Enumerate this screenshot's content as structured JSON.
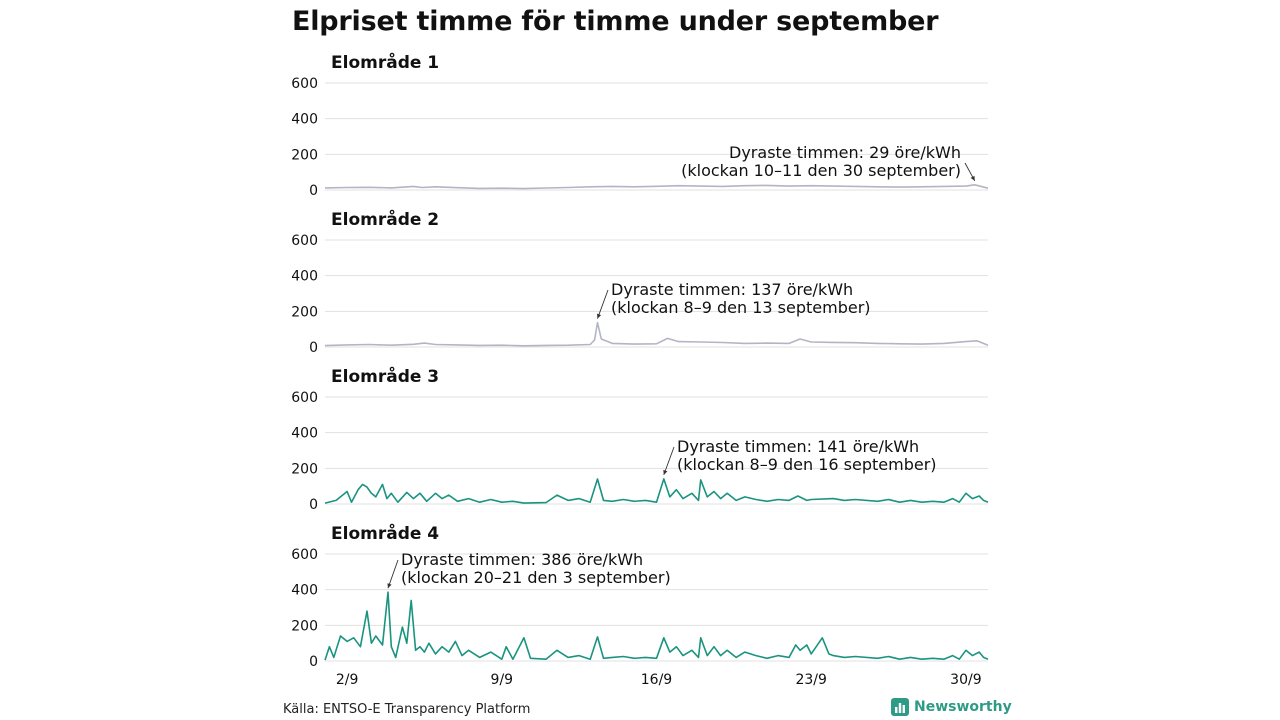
{
  "title": "Elpriset timme för timme under september",
  "source": "Källa: ENTSO-E Transparency Platform",
  "brand": {
    "name": "Newsworthy",
    "icon": "bar-chart-icon",
    "color": "#2e9b86"
  },
  "chart_data": {
    "type": "line",
    "unit": "öre/kWh",
    "x_ticks": [
      {
        "label": "2/9",
        "day": 2
      },
      {
        "label": "9/9",
        "day": 9
      },
      {
        "label": "16/9",
        "day": 16
      },
      {
        "label": "23/9",
        "day": 23
      },
      {
        "label": "30/9",
        "day": 30
      }
    ],
    "y_ticks": [
      0,
      200,
      400,
      600
    ],
    "ylim": [
      0,
      600
    ],
    "xlim_days": [
      1,
      31
    ],
    "grid": true,
    "panels": [
      {
        "name": "Elområde 1",
        "color": "#b3b5c6",
        "annotation": {
          "line1": "Dyraste timmen: 29 öre/kWh",
          "line2": "(klockan 10–11 den 30 september)",
          "day": 30.4,
          "value": 29
        },
        "points": [
          [
            1,
            12
          ],
          [
            2,
            14
          ],
          [
            3,
            15
          ],
          [
            4,
            12
          ],
          [
            5,
            20
          ],
          [
            5.4,
            14
          ],
          [
            6,
            18
          ],
          [
            7,
            13
          ],
          [
            8,
            9
          ],
          [
            9,
            10
          ],
          [
            10,
            8
          ],
          [
            11,
            11
          ],
          [
            12,
            14
          ],
          [
            13,
            18
          ],
          [
            14,
            20
          ],
          [
            15,
            18
          ],
          [
            16,
            21
          ],
          [
            17,
            24
          ],
          [
            18,
            22
          ],
          [
            19,
            20
          ],
          [
            20,
            24
          ],
          [
            21,
            26
          ],
          [
            22,
            22
          ],
          [
            23,
            24
          ],
          [
            24,
            22
          ],
          [
            25,
            20
          ],
          [
            26,
            18
          ],
          [
            27,
            16
          ],
          [
            28,
            18
          ],
          [
            29,
            20
          ],
          [
            30,
            22
          ],
          [
            30.4,
            29
          ],
          [
            31,
            10
          ]
        ]
      },
      {
        "name": "Elområde 2",
        "color": "#b3b5c6",
        "annotation": {
          "line1": "Dyraste timmen: 137 öre/kWh",
          "line2": "(klockan 8–9 den 13 september)",
          "day": 13.33,
          "value": 137
        },
        "points": [
          [
            1,
            8
          ],
          [
            2,
            12
          ],
          [
            3,
            14
          ],
          [
            4,
            10
          ],
          [
            5,
            15
          ],
          [
            5.5,
            22
          ],
          [
            6,
            14
          ],
          [
            7,
            12
          ],
          [
            8,
            9
          ],
          [
            9,
            10
          ],
          [
            10,
            7
          ],
          [
            11,
            9
          ],
          [
            12,
            10
          ],
          [
            13,
            14
          ],
          [
            13.2,
            40
          ],
          [
            13.33,
            137
          ],
          [
            13.5,
            45
          ],
          [
            14,
            20
          ],
          [
            15,
            16
          ],
          [
            16,
            18
          ],
          [
            16.5,
            48
          ],
          [
            17,
            30
          ],
          [
            18,
            28
          ],
          [
            19,
            25
          ],
          [
            20,
            20
          ],
          [
            21,
            22
          ],
          [
            22,
            20
          ],
          [
            22.5,
            45
          ],
          [
            23,
            28
          ],
          [
            24,
            26
          ],
          [
            25,
            24
          ],
          [
            26,
            20
          ],
          [
            27,
            18
          ],
          [
            28,
            16
          ],
          [
            29,
            20
          ],
          [
            30,
            30
          ],
          [
            30.5,
            35
          ],
          [
            31,
            10
          ]
        ]
      },
      {
        "name": "Elområde 3",
        "color": "#1a9480",
        "annotation": {
          "line1": "Dyraste timmen: 141 öre/kWh",
          "line2": "(klockan 8–9 den 16 september)",
          "day": 16.33,
          "value": 141
        },
        "points": [
          [
            1,
            5
          ],
          [
            1.5,
            20
          ],
          [
            2,
            70
          ],
          [
            2.2,
            10
          ],
          [
            2.5,
            80
          ],
          [
            2.7,
            110
          ],
          [
            2.9,
            95
          ],
          [
            3.1,
            60
          ],
          [
            3.3,
            40
          ],
          [
            3.6,
            110
          ],
          [
            3.8,
            30
          ],
          [
            4,
            60
          ],
          [
            4.3,
            10
          ],
          [
            4.7,
            65
          ],
          [
            5,
            30
          ],
          [
            5.3,
            60
          ],
          [
            5.6,
            15
          ],
          [
            6,
            60
          ],
          [
            6.3,
            30
          ],
          [
            6.6,
            50
          ],
          [
            7,
            15
          ],
          [
            7.5,
            30
          ],
          [
            8,
            10
          ],
          [
            8.5,
            25
          ],
          [
            9,
            10
          ],
          [
            9.5,
            15
          ],
          [
            10,
            5
          ],
          [
            11,
            8
          ],
          [
            11.5,
            50
          ],
          [
            12,
            20
          ],
          [
            12.5,
            30
          ],
          [
            13,
            10
          ],
          [
            13.33,
            140
          ],
          [
            13.6,
            20
          ],
          [
            14,
            15
          ],
          [
            14.5,
            25
          ],
          [
            15,
            15
          ],
          [
            15.5,
            20
          ],
          [
            16,
            10
          ],
          [
            16.33,
            141
          ],
          [
            16.6,
            40
          ],
          [
            16.9,
            80
          ],
          [
            17.2,
            30
          ],
          [
            17.6,
            60
          ],
          [
            17.9,
            20
          ],
          [
            18,
            135
          ],
          [
            18.3,
            40
          ],
          [
            18.6,
            70
          ],
          [
            18.9,
            30
          ],
          [
            19.2,
            60
          ],
          [
            19.6,
            20
          ],
          [
            20,
            40
          ],
          [
            20.5,
            25
          ],
          [
            21,
            15
          ],
          [
            21.5,
            25
          ],
          [
            22,
            20
          ],
          [
            22.4,
            45
          ],
          [
            22.8,
            20
          ],
          [
            23,
            25
          ],
          [
            24,
            30
          ],
          [
            24.5,
            20
          ],
          [
            25,
            25
          ],
          [
            26,
            15
          ],
          [
            26.5,
            25
          ],
          [
            27,
            10
          ],
          [
            27.5,
            20
          ],
          [
            28,
            10
          ],
          [
            28.5,
            15
          ],
          [
            29,
            10
          ],
          [
            29.4,
            30
          ],
          [
            29.7,
            10
          ],
          [
            30,
            60
          ],
          [
            30.3,
            30
          ],
          [
            30.6,
            45
          ],
          [
            30.8,
            20
          ],
          [
            31,
            10
          ]
        ]
      },
      {
        "name": "Elområde 4",
        "color": "#1a9480",
        "annotation": {
          "line1": "Dyraste timmen: 386 öre/kWh",
          "line2": "(klockan 20–21 den 3 september)",
          "day": 3.85,
          "value": 386
        },
        "points": [
          [
            1,
            5
          ],
          [
            1.2,
            80
          ],
          [
            1.4,
            20
          ],
          [
            1.7,
            140
          ],
          [
            2,
            110
          ],
          [
            2.3,
            130
          ],
          [
            2.6,
            80
          ],
          [
            2.9,
            280
          ],
          [
            3.1,
            100
          ],
          [
            3.3,
            140
          ],
          [
            3.6,
            90
          ],
          [
            3.85,
            386
          ],
          [
            4,
            80
          ],
          [
            4.2,
            20
          ],
          [
            4.5,
            190
          ],
          [
            4.7,
            100
          ],
          [
            4.9,
            340
          ],
          [
            5.1,
            60
          ],
          [
            5.3,
            80
          ],
          [
            5.5,
            50
          ],
          [
            5.7,
            100
          ],
          [
            6,
            40
          ],
          [
            6.3,
            80
          ],
          [
            6.6,
            50
          ],
          [
            6.9,
            110
          ],
          [
            7.2,
            30
          ],
          [
            7.5,
            60
          ],
          [
            8,
            20
          ],
          [
            8.5,
            50
          ],
          [
            9,
            10
          ],
          [
            9.2,
            80
          ],
          [
            9.5,
            10
          ],
          [
            10,
            130
          ],
          [
            10.3,
            15
          ],
          [
            11,
            10
          ],
          [
            11.5,
            60
          ],
          [
            12,
            20
          ],
          [
            12.5,
            30
          ],
          [
            13,
            10
          ],
          [
            13.33,
            135
          ],
          [
            13.6,
            15
          ],
          [
            14,
            20
          ],
          [
            14.5,
            25
          ],
          [
            15,
            15
          ],
          [
            15.5,
            20
          ],
          [
            16,
            15
          ],
          [
            16.33,
            130
          ],
          [
            16.6,
            50
          ],
          [
            16.9,
            80
          ],
          [
            17.2,
            30
          ],
          [
            17.6,
            60
          ],
          [
            17.9,
            20
          ],
          [
            18,
            130
          ],
          [
            18.3,
            30
          ],
          [
            18.6,
            80
          ],
          [
            18.9,
            30
          ],
          [
            19.2,
            60
          ],
          [
            19.6,
            20
          ],
          [
            20,
            50
          ],
          [
            20.5,
            30
          ],
          [
            21,
            15
          ],
          [
            21.5,
            30
          ],
          [
            22,
            20
          ],
          [
            22.3,
            90
          ],
          [
            22.5,
            60
          ],
          [
            22.8,
            90
          ],
          [
            23,
            40
          ],
          [
            23.5,
            130
          ],
          [
            23.8,
            40
          ],
          [
            24,
            30
          ],
          [
            24.5,
            20
          ],
          [
            25,
            25
          ],
          [
            26,
            15
          ],
          [
            26.5,
            25
          ],
          [
            27,
            10
          ],
          [
            27.5,
            20
          ],
          [
            28,
            10
          ],
          [
            28.5,
            15
          ],
          [
            29,
            10
          ],
          [
            29.4,
            30
          ],
          [
            29.7,
            10
          ],
          [
            30,
            60
          ],
          [
            30.3,
            30
          ],
          [
            30.6,
            50
          ],
          [
            30.8,
            20
          ],
          [
            31,
            10
          ]
        ]
      }
    ]
  }
}
